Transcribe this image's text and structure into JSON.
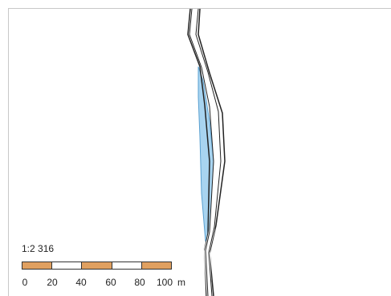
{
  "scale": {
    "ratio_label": "1:2 316",
    "ticks": [
      "0",
      "20",
      "40",
      "60",
      "80",
      "100"
    ],
    "unit": "m",
    "segment_fill_color": "#e0a060"
  },
  "map": {
    "water_color": "#a8d4f0",
    "road_outline_color": "#222222"
  }
}
